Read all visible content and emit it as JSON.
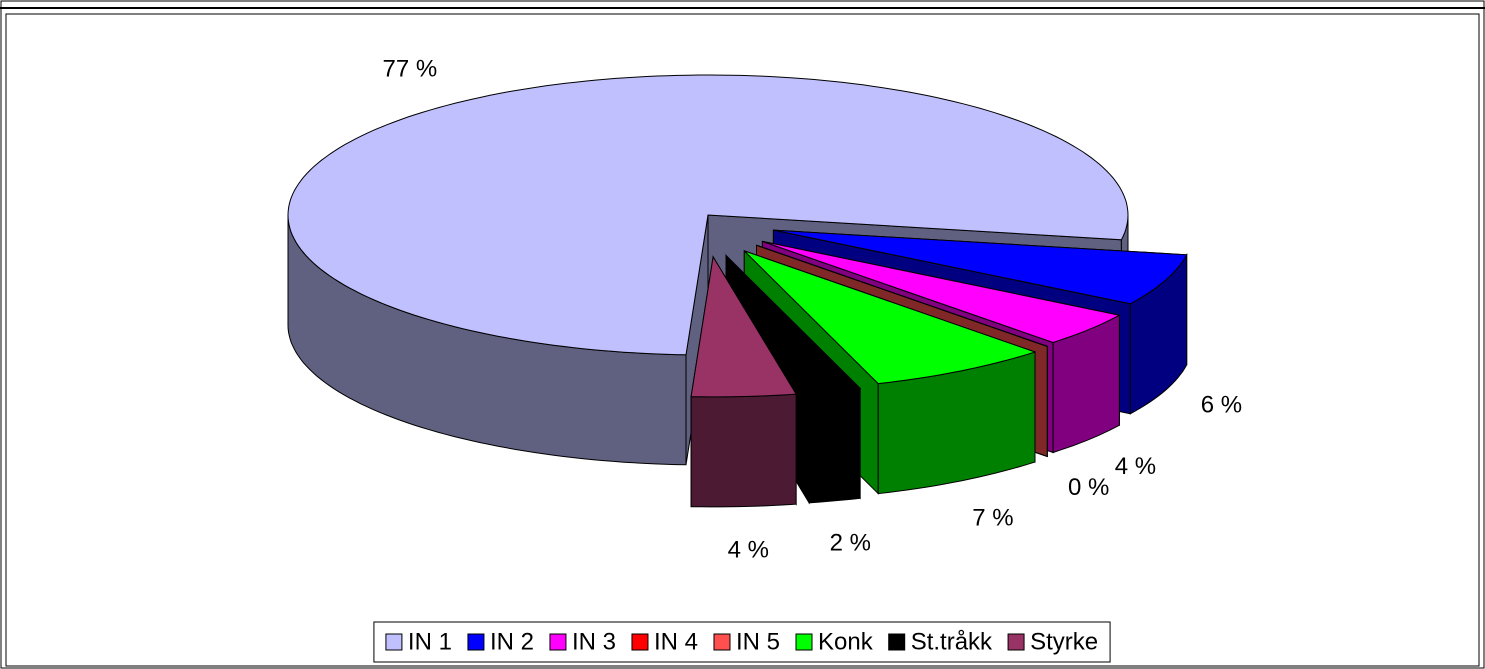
{
  "chart_data": {
    "type": "pie3d",
    "categories": [
      "IN 1",
      "IN 2",
      "IN 3",
      "IN 4",
      "IN 5",
      "Konk",
      "St.tråkk",
      "Styrke"
    ],
    "values": [
      77,
      6,
      4,
      0,
      0,
      7,
      2,
      4
    ],
    "value_labels": [
      "77 %",
      "6 %",
      "4 %",
      "0 %",
      null,
      "7 %",
      "2 %",
      "4 %"
    ],
    "colors": [
      "#c0c0ff",
      "#0000ff",
      "#ff00ff",
      "#ff0000",
      "#ff5050",
      "#00ff00",
      "#000000",
      "#993366"
    ],
    "legend": "bottom"
  }
}
